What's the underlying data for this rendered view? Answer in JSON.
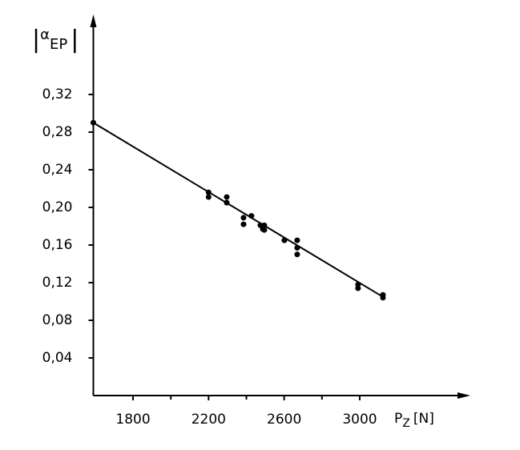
{
  "chart_data": {
    "type": "scatter",
    "y_label": {
      "symbol": "α",
      "subscript": "EP"
    },
    "x_label": {
      "symbol": "P",
      "subscript": "Z",
      "unit": "[N]"
    },
    "xlim": [
      1590,
      3560
    ],
    "ylim": [
      0,
      0.4
    ],
    "xticks": [
      1800,
      2200,
      2600,
      3000
    ],
    "minor_xticks": [
      2000,
      2400,
      2800
    ],
    "yticks": [
      {
        "value": 0.04,
        "label": "0,04"
      },
      {
        "value": 0.08,
        "label": "0,08"
      },
      {
        "value": 0.12,
        "label": "0,12"
      },
      {
        "value": 0.16,
        "label": "0,16"
      },
      {
        "value": 0.2,
        "label": "0,20"
      },
      {
        "value": 0.24,
        "label": "0,24"
      },
      {
        "value": 0.28,
        "label": "0,28"
      },
      {
        "value": 0.32,
        "label": "0,32"
      }
    ],
    "color": "#000000",
    "x": [
      1590,
      2200,
      2200,
      2296,
      2296,
      2385,
      2385,
      2427,
      2474,
      2487,
      2495,
      2495,
      2601,
      2669,
      2669,
      2669,
      2991,
      2991,
      3123,
      3123
    ],
    "values": [
      0.29,
      0.216,
      0.211,
      0.211,
      0.205,
      0.189,
      0.182,
      0.191,
      0.181,
      0.177,
      0.181,
      0.176,
      0.165,
      0.165,
      0.157,
      0.15,
      0.118,
      0.114,
      0.107,
      0.104
    ],
    "fit_line": {
      "x": [
        1590,
        3130
      ],
      "values": [
        0.29,
        0.104
      ]
    }
  }
}
